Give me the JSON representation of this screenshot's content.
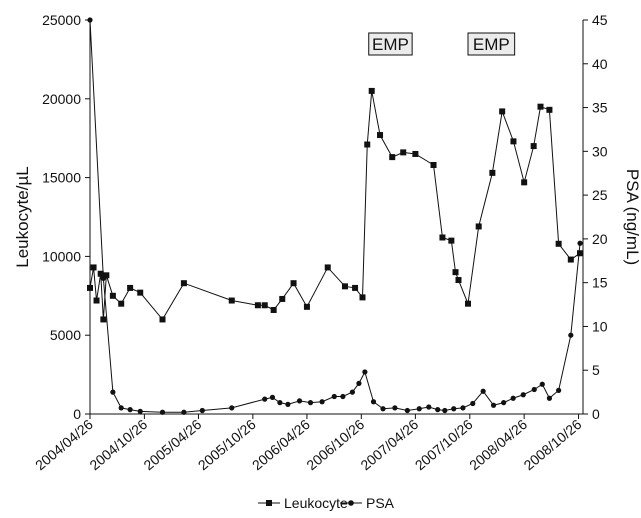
{
  "chart_data": {
    "type": "line",
    "x_type": "date",
    "x_range": [
      "2004-04-26",
      "2008-11-10"
    ],
    "x_ticks": [
      "2004/04/26",
      "2004/10/26",
      "2005/04/26",
      "2005/10/26",
      "2006/04/26",
      "2006/10/26",
      "2007/04/26",
      "2007/10/26",
      "2008/04/26",
      "2008/10/26"
    ],
    "y_left": {
      "label": "Leukocyte/µL",
      "range": [
        0,
        25000
      ],
      "ticks": [
        0,
        5000,
        10000,
        15000,
        20000,
        25000
      ]
    },
    "y_right": {
      "label": "PSA (ng/mL)",
      "range": [
        0,
        45
      ],
      "ticks": [
        0,
        5,
        10,
        15,
        20,
        25,
        30,
        35,
        40,
        45
      ]
    },
    "grid": false,
    "legend_position": "bottom",
    "annotations": [
      {
        "text": "EMP",
        "x_start": "2006-11-20",
        "x_end": "2007-04-15"
      },
      {
        "text": "EMP",
        "x_start": "2007-10-20",
        "x_end": "2008-03-25"
      }
    ],
    "series": [
      {
        "name": "Leukocyte",
        "axis": "left",
        "marker": "square",
        "points": [
          [
            "2004-04-26",
            8000
          ],
          [
            "2004-05-08",
            9300
          ],
          [
            "2004-05-18",
            7200
          ],
          [
            "2004-06-01",
            8900
          ],
          [
            "2004-06-10",
            6000
          ],
          [
            "2004-06-20",
            8800
          ],
          [
            "2004-07-12",
            7500
          ],
          [
            "2004-08-09",
            7000
          ],
          [
            "2004-09-08",
            8000
          ],
          [
            "2004-10-12",
            7700
          ],
          [
            "2004-12-26",
            6000
          ],
          [
            "2005-03-08",
            8300
          ],
          [
            "2005-08-16",
            7200
          ],
          [
            "2005-11-12",
            6900
          ],
          [
            "2005-12-05",
            6900
          ],
          [
            "2006-01-04",
            6600
          ],
          [
            "2006-02-02",
            7300
          ],
          [
            "2006-03-12",
            8300
          ],
          [
            "2006-04-26",
            6800
          ],
          [
            "2006-07-05",
            9300
          ],
          [
            "2006-09-01",
            8100
          ],
          [
            "2006-10-05",
            8000
          ],
          [
            "2006-10-30",
            7400
          ],
          [
            "2006-11-15",
            17100
          ],
          [
            "2006-11-30",
            20500
          ],
          [
            "2006-12-28",
            17700
          ],
          [
            "2007-02-07",
            16300
          ],
          [
            "2007-03-16",
            16600
          ],
          [
            "2007-04-26",
            16500
          ],
          [
            "2007-06-26",
            15800
          ],
          [
            "2007-07-26",
            11200
          ],
          [
            "2007-08-25",
            11000
          ],
          [
            "2007-09-08",
            9000
          ],
          [
            "2007-09-18",
            8500
          ],
          [
            "2007-10-20",
            7000
          ],
          [
            "2007-11-25",
            11900
          ],
          [
            "2008-01-10",
            15300
          ],
          [
            "2008-02-12",
            19200
          ],
          [
            "2008-03-21",
            17300
          ],
          [
            "2008-04-26",
            14700
          ],
          [
            "2008-05-28",
            17000
          ],
          [
            "2008-06-20",
            19500
          ],
          [
            "2008-07-20",
            19300
          ],
          [
            "2008-08-20",
            10800
          ],
          [
            "2008-09-30",
            9800
          ],
          [
            "2008-10-31",
            10200
          ]
        ]
      },
      {
        "name": "PSA",
        "axis": "right",
        "marker": "circle",
        "points": [
          [
            "2004-04-26",
            45
          ],
          [
            "2004-06-10",
            15.5
          ],
          [
            "2004-07-12",
            2.5
          ],
          [
            "2004-08-09",
            0.7
          ],
          [
            "2004-09-08",
            0.5
          ],
          [
            "2004-10-12",
            0.3
          ],
          [
            "2004-12-26",
            0.2
          ],
          [
            "2005-03-08",
            0.2
          ],
          [
            "2005-05-09",
            0.4
          ],
          [
            "2005-08-16",
            0.7
          ],
          [
            "2005-12-05",
            1.7
          ],
          [
            "2005-12-31",
            1.9
          ],
          [
            "2006-01-25",
            1.3
          ],
          [
            "2006-02-21",
            1.1
          ],
          [
            "2006-04-01",
            1.5
          ],
          [
            "2006-05-08",
            1.3
          ],
          [
            "2006-06-16",
            1.4
          ],
          [
            "2006-07-27",
            2.0
          ],
          [
            "2006-08-25",
            2.0
          ],
          [
            "2006-09-26",
            2.5
          ],
          [
            "2006-10-18",
            3.5
          ],
          [
            "2006-11-07",
            4.8
          ],
          [
            "2006-12-06",
            1.4
          ],
          [
            "2007-01-07",
            0.6
          ],
          [
            "2007-02-16",
            0.7
          ],
          [
            "2007-03-30",
            0.4
          ],
          [
            "2007-05-09",
            0.6
          ],
          [
            "2007-06-10",
            0.8
          ],
          [
            "2007-07-10",
            0.5
          ],
          [
            "2007-08-03",
            0.4
          ],
          [
            "2007-09-02",
            0.6
          ],
          [
            "2007-10-03",
            0.7
          ],
          [
            "2007-11-05",
            1.2
          ],
          [
            "2007-12-10",
            2.6
          ],
          [
            "2008-01-14",
            1.0
          ],
          [
            "2008-02-17",
            1.3
          ],
          [
            "2008-03-20",
            1.8
          ],
          [
            "2008-04-23",
            2.2
          ],
          [
            "2008-05-30",
            2.8
          ],
          [
            "2008-06-26",
            3.4
          ],
          [
            "2008-07-20",
            1.8
          ],
          [
            "2008-08-20",
            2.7
          ],
          [
            "2008-09-30",
            9.0
          ],
          [
            "2008-10-31",
            19.5
          ]
        ]
      }
    ]
  }
}
